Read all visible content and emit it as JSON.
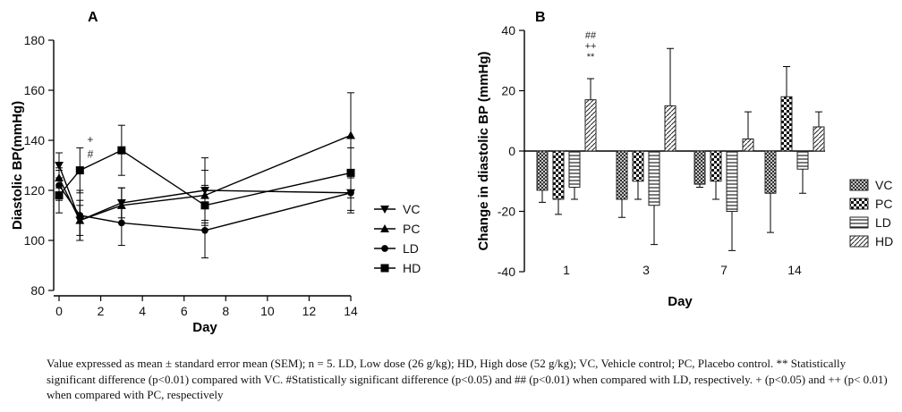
{
  "chart_data": [
    {
      "panel_label": "A",
      "type": "line",
      "xlabel": "Day",
      "ylabel": "Diastolic BP(mmHg)",
      "xlim": [
        0,
        14
      ],
      "ylim": [
        80,
        180
      ],
      "xticks": [
        "0",
        "2",
        "4",
        "6",
        "8",
        "10",
        "12",
        "14"
      ],
      "yticks": [
        "80",
        "100",
        "120",
        "140",
        "160",
        "180"
      ],
      "x": [
        0,
        1,
        3,
        7,
        14
      ],
      "legend_position": "right",
      "series": [
        {
          "name": "VC",
          "marker": "triangle-down",
          "values": [
            130,
            108,
            115,
            120,
            119
          ],
          "err": [
            5,
            8,
            6,
            13,
            7
          ]
        },
        {
          "name": "PC",
          "marker": "triangle-up",
          "values": [
            125,
            108,
            114,
            118,
            142
          ],
          "err": [
            4,
            6,
            7,
            10,
            17
          ]
        },
        {
          "name": "LD",
          "marker": "circle",
          "values": [
            122,
            110,
            107,
            104,
            119
          ],
          "err": [
            6,
            10,
            9,
            11,
            8
          ]
        },
        {
          "name": "HD",
          "marker": "square",
          "values": [
            118,
            128,
            136,
            114,
            127
          ],
          "err": [
            7,
            9,
            10,
            8,
            10
          ]
        }
      ],
      "annotations": [
        {
          "text": "+",
          "x": 1.5,
          "y": 139
        },
        {
          "text": "#",
          "x": 1.5,
          "y": 133
        }
      ]
    },
    {
      "panel_label": "B",
      "type": "bar",
      "xlabel": "Day",
      "ylabel": "Change in diastolic BP (mmHg)",
      "ylim": [
        -40,
        40
      ],
      "yticks": [
        "-40",
        "-20",
        "0",
        "20",
        "40"
      ],
      "categories": [
        "1",
        "3",
        "7",
        "14"
      ],
      "legend_position": "right",
      "series": [
        {
          "name": "VC",
          "pattern": "crosshatch",
          "values": [
            -13,
            -16,
            -11,
            -14
          ],
          "err": [
            4,
            6,
            1,
            13
          ]
        },
        {
          "name": "PC",
          "pattern": "checker",
          "values": [
            -16,
            -10,
            -10,
            18
          ],
          "err": [
            5,
            6,
            6,
            10
          ]
        },
        {
          "name": "LD",
          "pattern": "horizontal-lines",
          "values": [
            -12,
            -18,
            -20,
            -6
          ],
          "err": [
            4,
            13,
            13,
            8
          ]
        },
        {
          "name": "HD",
          "pattern": "diagonal-lines",
          "values": [
            17,
            15,
            4,
            8
          ],
          "err": [
            7,
            19,
            9,
            5
          ]
        }
      ],
      "annotations": [
        {
          "category": "1",
          "series": "HD",
          "lines": [
            "##",
            "++",
            "**"
          ]
        }
      ]
    }
  ],
  "caption": "Value expressed as mean ± standard error mean (SEM); n = 5. LD, Low dose (26 g/kg); HD, High dose (52 g/kg); VC, Vehicle control; PC, Placebo control. ** Statistically significant difference (p<0.01) compared with VC. #Statistically significant difference (p<0.05) and ## (p<0.01) when compared with LD, respectively. + (p<0.05) and ++ (p< 0.01) when compared with PC, respectively"
}
